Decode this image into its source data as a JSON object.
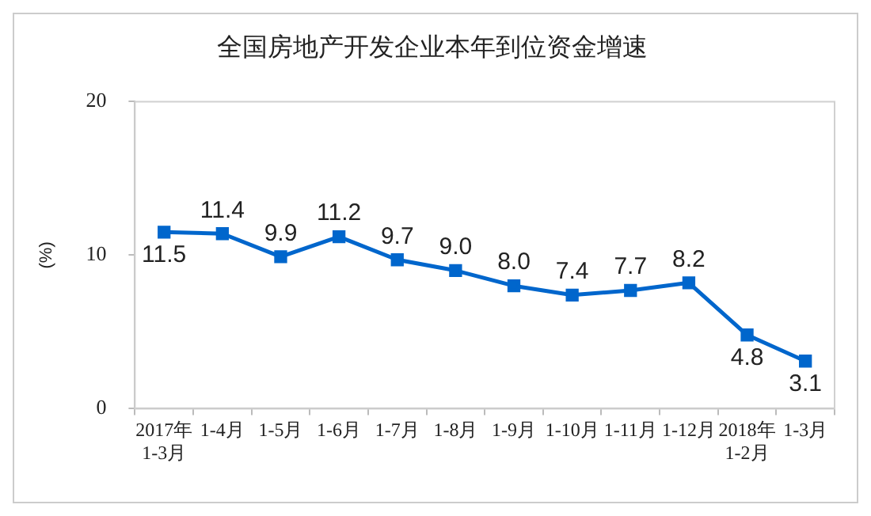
{
  "chart_data": {
    "type": "line",
    "title": "全国房地产开发企业本年到位资金增速",
    "ylabel": "(%)",
    "categories": [
      "2017年\n1-3月",
      "1-4月",
      "1-5月",
      "1-6月",
      "1-7月",
      "1-8月",
      "1-9月",
      "1-10月",
      "1-11月",
      "1-12月",
      "2018年\n1-2月",
      "1-3月"
    ],
    "series": [
      {
        "color": "#0066cc",
        "values": [
          11.5,
          11.4,
          9.9,
          11.2,
          9.7,
          9.0,
          8.0,
          7.4,
          7.7,
          8.2,
          4.8,
          3.1
        ],
        "value_labels": [
          "11.5",
          "11.4",
          "9.9",
          "11.2",
          "9.7",
          "9.0",
          "8.0",
          "7.4",
          "7.7",
          "8.2",
          "4.8",
          "3.1"
        ]
      }
    ],
    "ylim": [
      0,
      20
    ],
    "yticks": [
      0,
      10,
      20
    ],
    "grid": false,
    "legend": false,
    "marker": "square",
    "line_style": "solid"
  }
}
